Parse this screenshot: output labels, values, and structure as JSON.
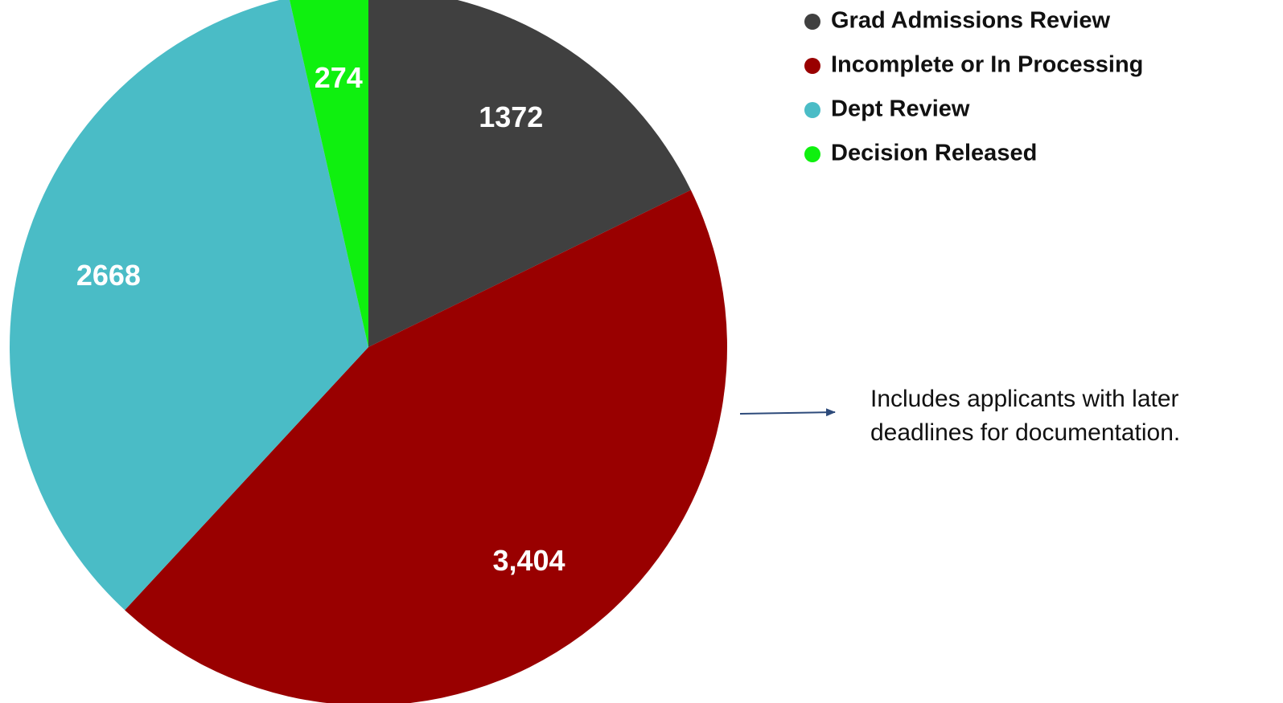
{
  "chart_data": {
    "type": "pie",
    "categories": [
      "Grad Admissions Review",
      "Incomplete or In Processing",
      "Dept Review",
      "Decision Released"
    ],
    "values": [
      1372,
      3404,
      2668,
      274
    ],
    "value_labels": [
      "1372",
      "3,404",
      "2668",
      "274"
    ],
    "colors": [
      "#404040",
      "#990000",
      "#4abcc6",
      "#0ff00f"
    ],
    "legend": "top-right",
    "annotation": [
      "Includes applicants with later",
      "deadlines for documentation."
    ]
  }
}
